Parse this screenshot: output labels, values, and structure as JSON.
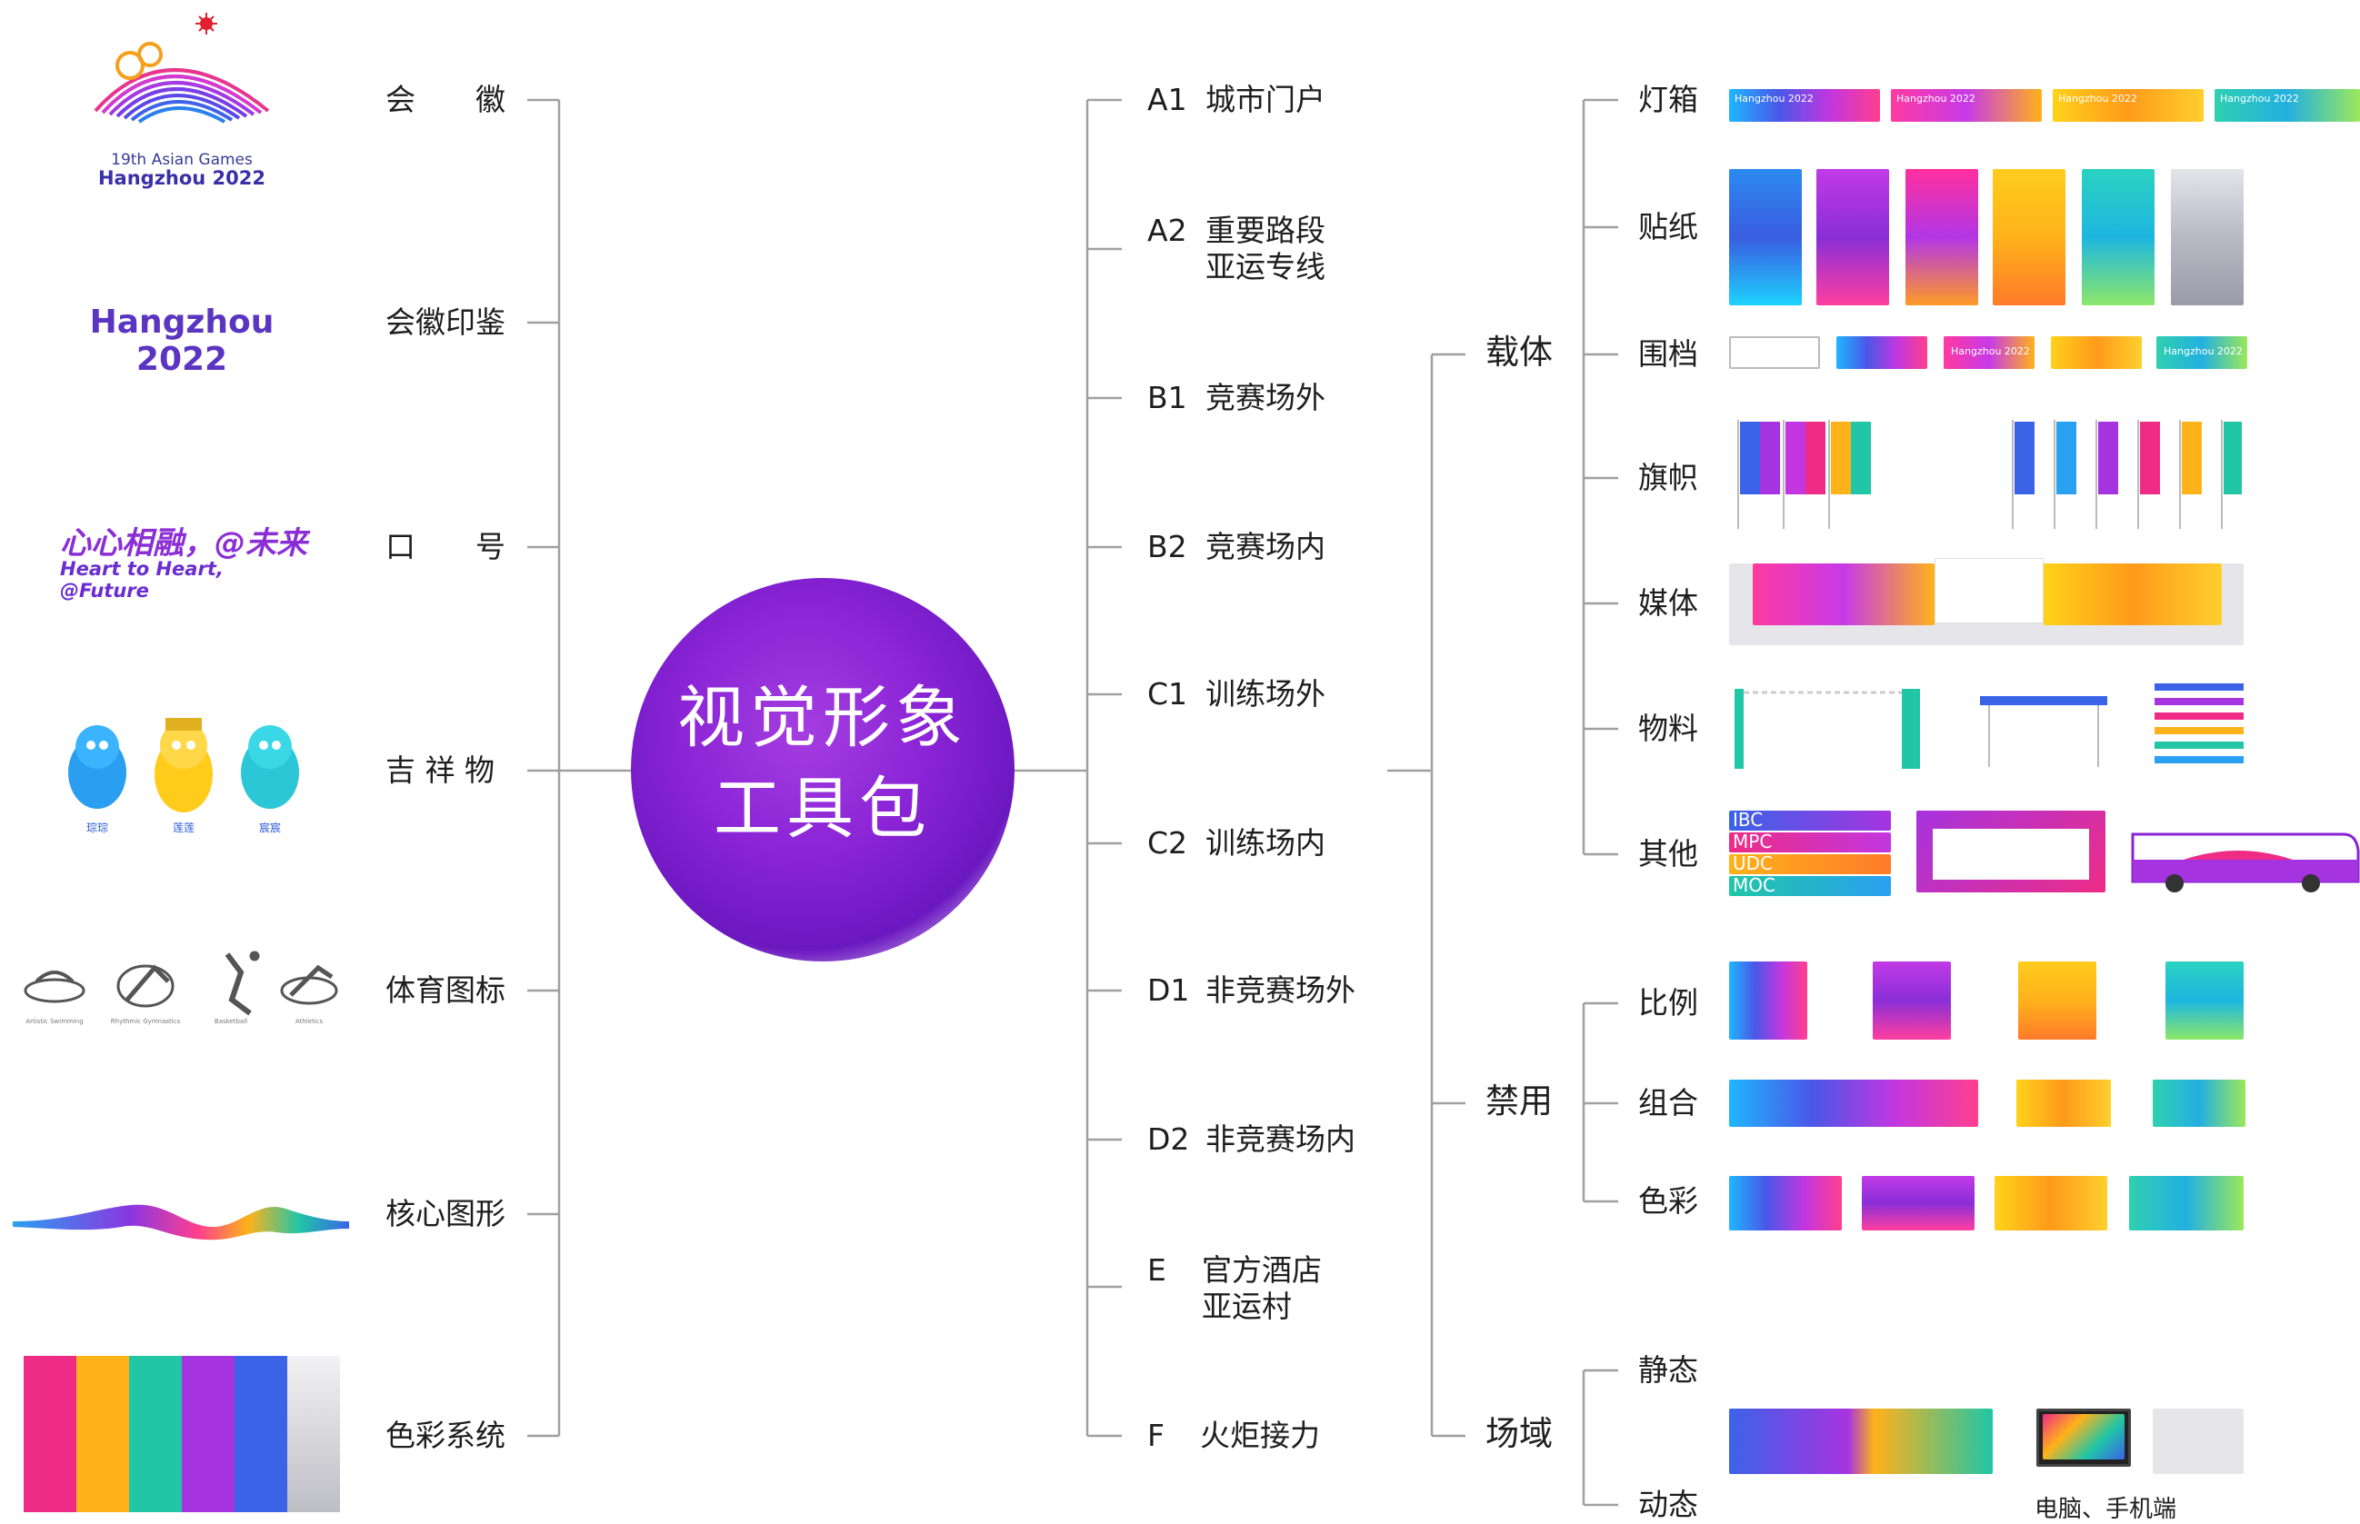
{
  "center": {
    "line1": "视觉形象",
    "line2": "工具包"
  },
  "left": {
    "items": [
      {
        "label": "会　　徽"
      },
      {
        "label": "会徽印鉴"
      },
      {
        "label": "口　　号"
      },
      {
        "label": "吉 祥 物"
      },
      {
        "label": "体育图标"
      },
      {
        "label": "核心图形"
      },
      {
        "label": "色彩系统"
      }
    ],
    "emblem": {
      "line1": "19th Asian Games",
      "line2": "Hangzhou 2022"
    },
    "seal": "Hangzhou 2022",
    "slogan": {
      "cn": "心心相融，@未来",
      "en": "Heart to Heart, @Future"
    },
    "mascots": [
      "琮琮",
      "莲莲",
      "宸宸"
    ],
    "sports": [
      "Artistic Swimming",
      "Rhythmic Gymnastics",
      "Basketball",
      "Athletics"
    ],
    "palette": [
      "#ee2c86",
      "#ffb21a",
      "#20c6a6",
      "#a633e0",
      "#3a63e8",
      "#d8d8dc"
    ]
  },
  "middle": {
    "items": [
      {
        "code": "A1",
        "text": "城市门户",
        "text2": ""
      },
      {
        "code": "A2",
        "text": "重要路段",
        "text2": "亚运专线"
      },
      {
        "code": "B1",
        "text": "竞赛场外",
        "text2": ""
      },
      {
        "code": "B2",
        "text": "竞赛场内",
        "text2": ""
      },
      {
        "code": "C1",
        "text": "训练场外",
        "text2": ""
      },
      {
        "code": "C2",
        "text": "训练场内",
        "text2": ""
      },
      {
        "code": "D1",
        "text": "非竞赛场外",
        "text2": ""
      },
      {
        "code": "D2",
        "text": "非竞赛场内",
        "text2": ""
      },
      {
        "code": "E",
        "text": "官方酒店",
        "text2": "亚运村"
      },
      {
        "code": "F",
        "text": "火炬接力",
        "text2": ""
      }
    ]
  },
  "right": {
    "groups": [
      {
        "label": "载体",
        "subs": [
          "灯箱",
          "贴纸",
          "围档",
          "旗帜",
          "媒体",
          "物料",
          "其他"
        ]
      },
      {
        "label": "禁用",
        "subs": [
          "比例",
          "组合",
          "色彩"
        ]
      },
      {
        "label": "场域",
        "subs": [
          "静态",
          "动态"
        ]
      }
    ],
    "lightbox_text": "Hangzhou 2022",
    "other_codes": [
      "IBC",
      "MPC",
      "UDC",
      "MOC"
    ],
    "device_caption": "电脑、手机端"
  },
  "colors": {
    "accent": "#8a24d6",
    "line": "#9a9a9a",
    "text": "#1e1e1e"
  }
}
